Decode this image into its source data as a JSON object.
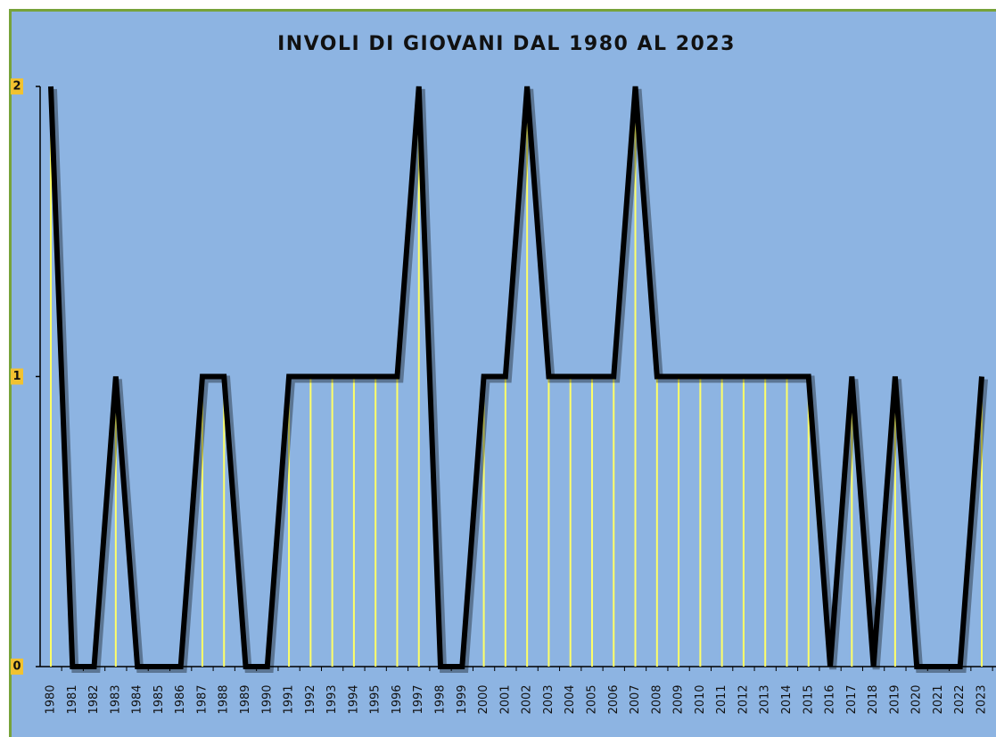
{
  "chart_data": {
    "type": "line",
    "title": "INVOLI DI GIOVANI DAL 1980 AL 2023",
    "categories": [
      "1980",
      "1981",
      "1982",
      "1983",
      "1984",
      "1985",
      "1986",
      "1987",
      "1988",
      "1989",
      "1990",
      "1991",
      "1992",
      "1993",
      "1994",
      "1995",
      "1996",
      "1997",
      "1998",
      "1999",
      "2000",
      "2001",
      "2002",
      "2003",
      "2004",
      "2005",
      "2006",
      "2007",
      "2008",
      "2009",
      "2010",
      "2011",
      "2012",
      "2013",
      "2014",
      "2015",
      "2016",
      "2017",
      "2018",
      "2019",
      "2020",
      "2021",
      "2022",
      "2023"
    ],
    "values": [
      2,
      0,
      0,
      1,
      0,
      0,
      0,
      1,
      1,
      0,
      0,
      1,
      1,
      1,
      1,
      1,
      1,
      2,
      0,
      0,
      1,
      1,
      2,
      1,
      1,
      1,
      1,
      2,
      1,
      1,
      1,
      1,
      1,
      1,
      1,
      1,
      0,
      1,
      0,
      1,
      0,
      0,
      0,
      1
    ],
    "color": "#000000",
    "drop_line_color": "#ffff66",
    "background": "#8db4e2",
    "ylim": [
      0,
      2
    ],
    "yticks": [
      0,
      1,
      2
    ]
  }
}
